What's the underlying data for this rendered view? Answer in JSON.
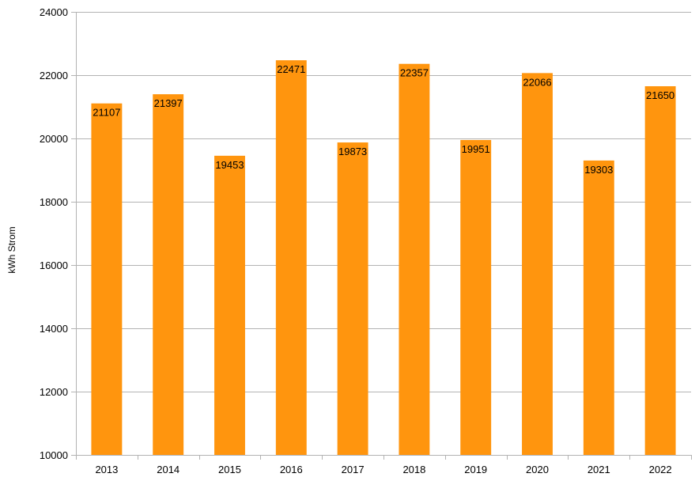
{
  "chart_data": {
    "type": "bar",
    "categories": [
      "2013",
      "2014",
      "2015",
      "2016",
      "2017",
      "2018",
      "2019",
      "2020",
      "2021",
      "2022"
    ],
    "values": [
      21107,
      21397,
      19453,
      22471,
      19873,
      22357,
      19951,
      22066,
      19303,
      21650
    ],
    "title": "",
    "xlabel": "",
    "ylabel": "kWh Strom",
    "ylim": [
      10000,
      24000
    ],
    "yticks": [
      10000,
      12000,
      14000,
      16000,
      18000,
      20000,
      22000,
      24000
    ],
    "grid": true,
    "legend": "none",
    "bar_color": "#ff950e",
    "grid_color": "#b3b3b3",
    "data_labels": true
  }
}
